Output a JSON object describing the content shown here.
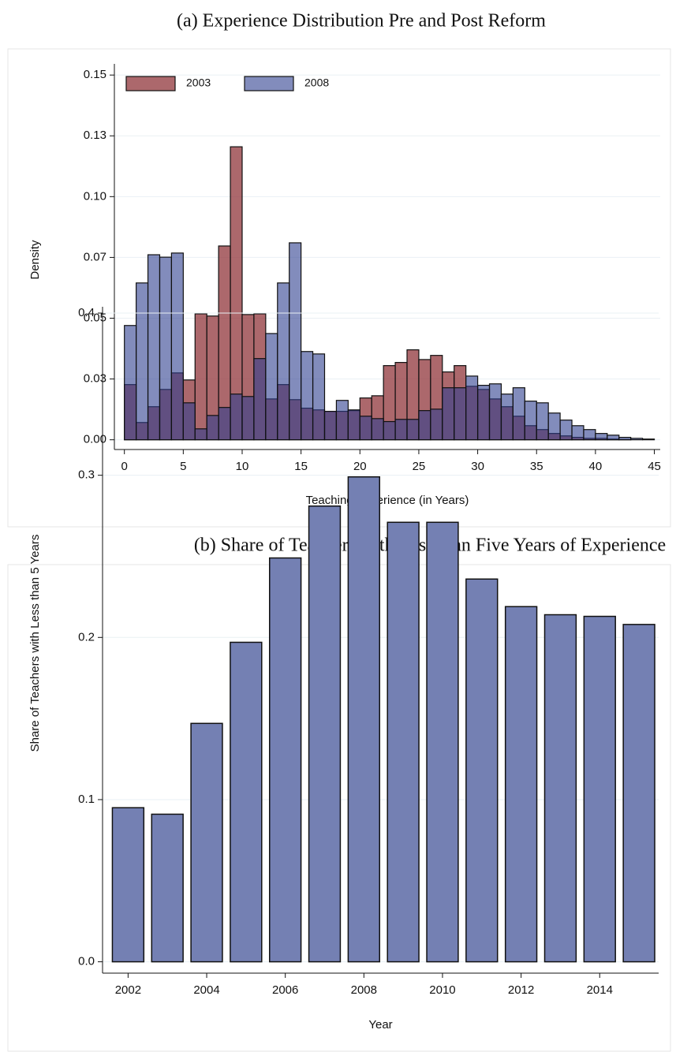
{
  "chart_data": [
    {
      "type": "histogram",
      "title": "(a) Experience Distribution Pre and Post Reform",
      "xlabel": "Teaching Experience (in Years)",
      "ylabel": "Density",
      "bins": [
        0,
        1,
        2,
        3,
        4,
        5,
        6,
        7,
        8,
        9,
        10,
        11,
        12,
        13,
        14,
        15,
        16,
        17,
        18,
        19,
        20,
        21,
        22,
        23,
        24,
        25,
        26,
        27,
        28,
        29,
        30,
        31,
        32,
        33,
        34,
        35,
        36,
        37,
        38,
        39,
        40,
        41,
        42,
        43,
        44,
        45
      ],
      "series": [
        {
          "name": "2003",
          "color": "#90353b",
          "values": [
            0.0227,
            0.0071,
            0.0136,
            0.0207,
            0.0275,
            0.0246,
            0.0518,
            0.0509,
            0.0797,
            0.1205,
            0.0515,
            0.0518,
            0.0168,
            0.0227,
            0.0165,
            0.013,
            0.0123,
            0.0117,
            0.0117,
            0.012,
            0.0172,
            0.0181,
            0.0305,
            0.0318,
            0.037,
            0.033,
            0.0347,
            0.0279,
            0.0305,
            0.022,
            0.0207,
            0.0168,
            0.0136,
            0.0097,
            0.0058,
            0.0042,
            0.0026,
            0.0016,
            0.001,
            0.0006,
            0.0006,
            0.0003,
            0.0001,
            0,
            0
          ]
        },
        {
          "name": "2008",
          "color": "#2e3f8f",
          "values": [
            0.047,
            0.0645,
            0.0761,
            0.0751,
            0.0768,
            0.0152,
            0.0045,
            0.01,
            0.0133,
            0.0188,
            0.0178,
            0.0334,
            0.0437,
            0.0645,
            0.081,
            0.0363,
            0.0353,
            0.0117,
            0.0162,
            0.0123,
            0.0097,
            0.0087,
            0.0075,
            0.0084,
            0.0084,
            0.012,
            0.0126,
            0.0214,
            0.0214,
            0.0262,
            0.0224,
            0.023,
            0.0188,
            0.0214,
            0.0159,
            0.0152,
            0.011,
            0.0081,
            0.0058,
            0.0042,
            0.0026,
            0.0019,
            0.001,
            0.0006,
            0.0003
          ]
        }
      ],
      "xlim": [
        -0.85,
        45.5
      ],
      "ylim": [
        -0.004,
        0.152
      ],
      "xticks": [
        0,
        5,
        10,
        15,
        20,
        25,
        30,
        35,
        40,
        45
      ],
      "yticks": [
        {
          "value": 0,
          "label": "0.00"
        },
        {
          "value": 0.025,
          "label": "0.03"
        },
        {
          "value": 0.05,
          "label": "0.05"
        },
        {
          "value": 0.075,
          "label": "0.07"
        },
        {
          "value": 0.1,
          "label": "0.10"
        },
        {
          "value": 0.125,
          "label": "0.13"
        },
        {
          "value": 0.15,
          "label": "0.15"
        }
      ],
      "grid": true,
      "legend": "top-left"
    },
    {
      "type": "bar",
      "title": "(b) Share of Teachers with Less than Five Years of Experience",
      "xlabel": "Year",
      "ylabel": "Share of Teachers with Less than 5 Years",
      "x": [
        2002,
        2003,
        2004,
        2005,
        2006,
        2007,
        2008,
        2009,
        2010,
        2011,
        2012,
        2013,
        2014,
        2015
      ],
      "values": [
        0.095,
        0.091,
        0.147,
        0.197,
        0.249,
        0.281,
        0.299,
        0.271,
        0.271,
        0.236,
        0.219,
        0.214,
        0.213,
        0.208
      ],
      "color": "#7480b3",
      "xlim": [
        2001.35,
        2015.5
      ],
      "ylim": [
        -0.007,
        0.4
      ],
      "xticks": [
        2002,
        2004,
        2006,
        2008,
        2010,
        2012,
        2014
      ],
      "yticks": [
        {
          "value": 0,
          "label": "0.0"
        },
        0.1,
        0.2,
        0.3,
        0.4
      ],
      "grid": true
    }
  ]
}
